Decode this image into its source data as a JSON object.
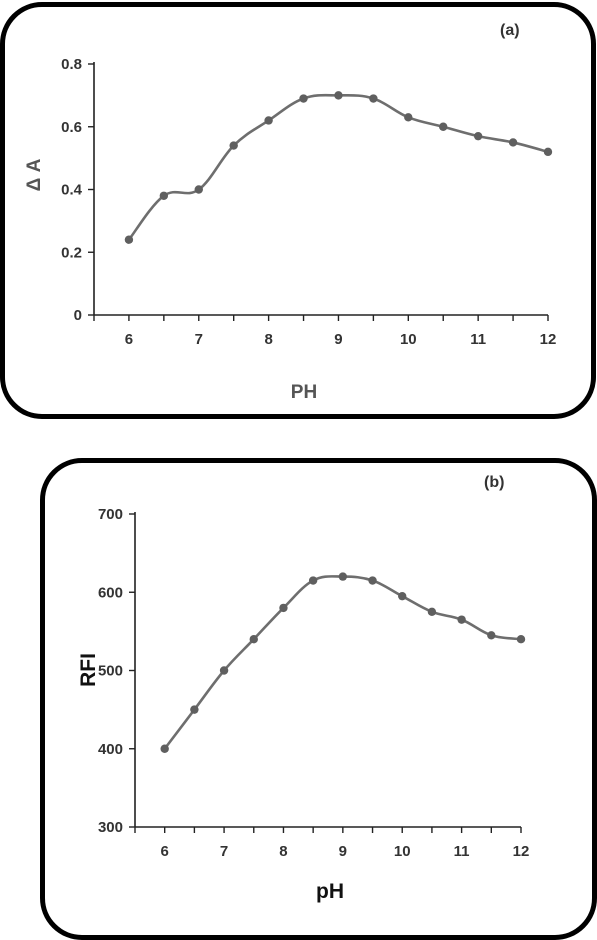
{
  "chart_data": [
    {
      "type": "line",
      "panel_label": "(a)",
      "xlabel": "PH",
      "ylabel": "Δ A",
      "x": [
        6,
        6.5,
        7,
        7.5,
        8,
        8.5,
        9,
        9.5,
        10,
        10.5,
        11,
        11.5,
        12
      ],
      "values": [
        0.24,
        0.38,
        0.4,
        0.54,
        0.62,
        0.69,
        0.7,
        0.69,
        0.63,
        0.6,
        0.57,
        0.55,
        0.52
      ],
      "xlim": [
        5.5,
        12
      ],
      "ylim": [
        0,
        0.8
      ],
      "x_ticks": [
        "6",
        "7",
        "8",
        "9",
        "10",
        "11",
        "12"
      ],
      "y_ticks": [
        "0",
        "0.2",
        "0.4",
        "0.6",
        "0.8"
      ],
      "grid": false,
      "line_color": "#6e6e6e"
    },
    {
      "type": "line",
      "panel_label": "(b)",
      "xlabel": "pH",
      "ylabel": "RFI",
      "x": [
        6,
        6.5,
        7,
        7.5,
        8,
        8.5,
        9,
        9.5,
        10,
        10.5,
        11,
        11.5,
        12
      ],
      "values": [
        400,
        450,
        500,
        540,
        580,
        615,
        620,
        615,
        595,
        575,
        565,
        545,
        540
      ],
      "xlim": [
        5.5,
        12
      ],
      "ylim": [
        300,
        700
      ],
      "x_ticks": [
        "6",
        "7",
        "8",
        "9",
        "10",
        "11",
        "12"
      ],
      "y_ticks": [
        "300",
        "400",
        "500",
        "600",
        "700"
      ],
      "grid": false,
      "line_color": "#6e6e6e"
    }
  ]
}
